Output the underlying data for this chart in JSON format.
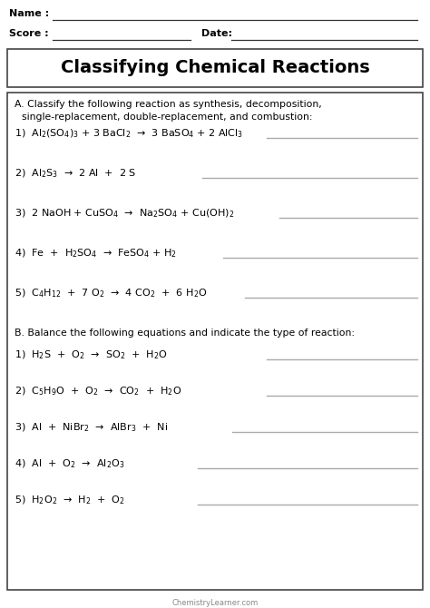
{
  "bg_color": "#ffffff",
  "text_color": "#000000",
  "title": "Classifying Chemical Reactions",
  "footer": "ChemistryLearner.com",
  "reactions_a": [
    "1)  Al$_2$(SO$_4$)$_3$ + 3 BaCl$_2$  →  3 BaSO$_4$ + 2 AlCl$_3$",
    "2)  Al$_2$S$_3$  →  2 Al  +  2 S",
    "3)  2 NaOH + CuSO$_4$  →  Na$_2$SO$_4$ + Cu(OH)$_2$",
    "4)  Fe  +  H$_2$SO$_4$  →  FeSO$_4$ + H$_2$",
    "5)  C$_4$H$_{12}$  +  7 O$_2$  →  4 CO$_2$  +  6 H$_2$O"
  ],
  "reactions_b": [
    "1)  H$_2$S  +  O$_2$  →  SO$_2$  +  H$_2$O",
    "2)  C$_5$H$_9$O  +  O$_2$  →  CO$_2$  +  H$_2$O",
    "3)  Al  +  NiBr$_2$  →  AlBr$_3$  +  Ni",
    "4)  Al  +  O$_2$  →  Al$_2$O$_3$",
    "5)  H$_2$O$_2$  →  H$_2$  +  O$_2$"
  ],
  "a_line_starts": [
    0.62,
    0.47,
    0.65,
    0.52,
    0.57
  ],
  "b_line_starts": [
    0.62,
    0.62,
    0.54,
    0.46,
    0.46
  ]
}
